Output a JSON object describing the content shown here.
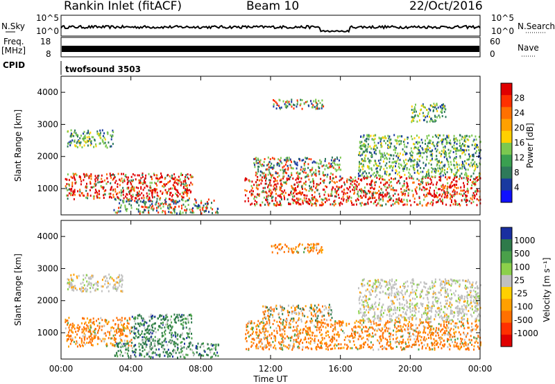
{
  "header": {
    "station": "Rankin Inlet (fitACF)",
    "beam": "Beam 10",
    "date": "22/Oct/2016"
  },
  "top_panels": {
    "nsky_label": "N.Sky",
    "nsearch_label": "N.Search",
    "nsky_ticks": [
      "10^5",
      "10^0"
    ],
    "freq_label_1": "Freq.",
    "freq_label_2": "[MHz]",
    "freq_ticks": [
      "18",
      "8"
    ],
    "nave_label": "Nave",
    "nave_ticks": [
      "60",
      "0"
    ],
    "cpid_label": "CPID",
    "cpid_value": "twofsound 3503"
  },
  "axes": {
    "ylabel": "Slant Range [km]",
    "xlabel": "Time UT",
    "xticks": [
      "00:00",
      "04:00",
      "08:00",
      "12:00",
      "16:00",
      "20:00",
      "00:00"
    ],
    "yticks": [
      "4000",
      "3000",
      "2000",
      "1000"
    ]
  },
  "colorbars": {
    "power": {
      "label": "Power [dB]",
      "ticks": [
        "28",
        "24",
        "20",
        "16",
        "12",
        "8",
        "4"
      ],
      "colors": [
        "#e00000",
        "#ff3000",
        "#ff7000",
        "#ffa000",
        "#ffd000",
        "#7bc850",
        "#3aa050",
        "#2e7a5a",
        "#1a3aa0",
        "#1010ff"
      ]
    },
    "velocity": {
      "label": "Velocity [m s⁻¹]",
      "ticks": [
        "1000",
        "500",
        "100",
        "25",
        "-25",
        "-100",
        "-500",
        "-1000"
      ],
      "colors": [
        "#1a2fa0",
        "#2e7a4a",
        "#4aa04a",
        "#8cd04a",
        "#c0c0c0",
        "#ffd000",
        "#ffa000",
        "#ff7000",
        "#ff3000",
        "#e00000"
      ]
    }
  },
  "chart_data": {
    "type": "heatmap",
    "x_unit": "hours UT",
    "x_range": [
      0,
      24
    ],
    "y_range": [
      180,
      4500
    ],
    "range_bands_power": [
      {
        "t0": 0.2,
        "t1": 7.5,
        "r0": 700,
        "r1": 1500,
        "level": "high"
      },
      {
        "t0": 0.3,
        "t1": 3.0,
        "r0": 2300,
        "r1": 2850,
        "level": "low"
      },
      {
        "t0": 3.0,
        "t1": 9.0,
        "r0": 250,
        "r1": 700,
        "level": "mid"
      },
      {
        "t0": 10.5,
        "t1": 24.0,
        "r0": 500,
        "r1": 1400,
        "level": "high"
      },
      {
        "t0": 11.0,
        "t1": 16.0,
        "r0": 1400,
        "r1": 2000,
        "level": "mid"
      },
      {
        "t0": 17.0,
        "t1": 24.0,
        "r0": 1400,
        "r1": 2700,
        "level": "low"
      },
      {
        "t0": 12.0,
        "t1": 15.0,
        "r0": 3500,
        "r1": 3800,
        "level": "mid"
      },
      {
        "t0": 20.0,
        "t1": 22.0,
        "r0": 3100,
        "r1": 3700,
        "level": "low"
      }
    ],
    "range_bands_velocity": [
      {
        "t0": 0.2,
        "t1": 4.0,
        "r0": 600,
        "r1": 1500,
        "sign": "neg"
      },
      {
        "t0": 4.0,
        "t1": 7.5,
        "r0": 700,
        "r1": 1600,
        "sign": "pos"
      },
      {
        "t0": 0.3,
        "t1": 3.5,
        "r0": 2300,
        "r1": 2850,
        "sign": "zero"
      },
      {
        "t0": 3.0,
        "t1": 9.0,
        "r0": 250,
        "r1": 700,
        "sign": "pos"
      },
      {
        "t0": 10.5,
        "t1": 24.0,
        "r0": 500,
        "r1": 1400,
        "sign": "neg"
      },
      {
        "t0": 11.5,
        "t1": 15.5,
        "r0": 1400,
        "r1": 1900,
        "sign": "mix"
      },
      {
        "t0": 17.0,
        "t1": 24.0,
        "r0": 1400,
        "r1": 2700,
        "sign": "zero"
      },
      {
        "t0": 12.0,
        "t1": 15.0,
        "r0": 3500,
        "r1": 3800,
        "sign": "neg"
      }
    ]
  }
}
